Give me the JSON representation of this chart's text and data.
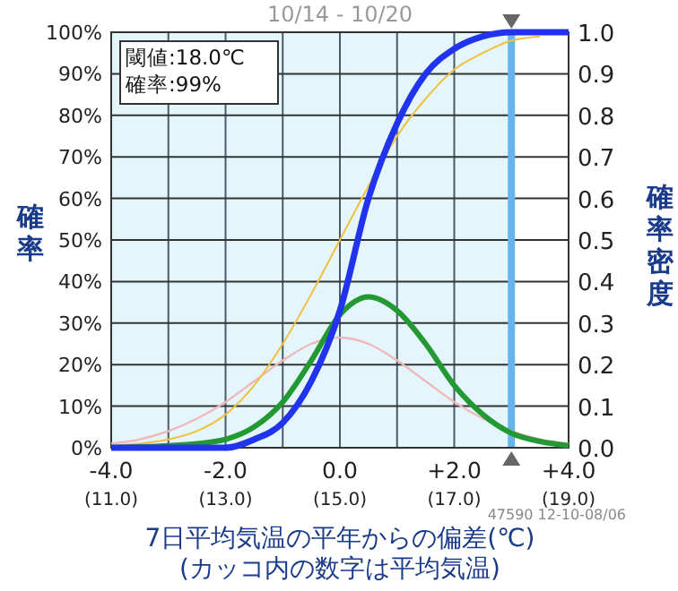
{
  "chart_data": {
    "type": "line",
    "title": "10/14 - 10/20",
    "xlabel": "7日平均気温の平年からの偏差(℃)\n(カッコ内の数字は平均気温)",
    "ylabel": "確率",
    "y2label": "確率密度",
    "x": [
      -4,
      -3.5,
      -3,
      -2.5,
      -2,
      -1.5,
      -1,
      -0.5,
      0,
      0.5,
      1,
      1.5,
      2,
      2.5,
      3,
      3.5,
      4
    ],
    "series": [
      {
        "color": "#f0b8b8",
        "axis": "y2",
        "values": [
          0.01,
          0.02,
          0.04,
          0.07,
          0.11,
          0.16,
          0.21,
          0.25,
          0.265,
          0.25,
          0.21,
          0.16,
          0.11,
          0.07,
          0.04,
          0.02,
          0.01
        ]
      },
      {
        "color": "#f0c040",
        "values": [
          0.5,
          1,
          2,
          4,
          8,
          15,
          25,
          37,
          50,
          63,
          75,
          84,
          91,
          95,
          98,
          99,
          null
        ]
      },
      {
        "color": "#229933",
        "axis": "y2",
        "values": [
          0,
          0.002,
          0.005,
          0.01,
          0.02,
          0.05,
          0.11,
          0.21,
          0.32,
          0.363,
          0.33,
          0.25,
          0.15,
          0.08,
          0.035,
          0.015,
          0.005
        ]
      },
      {
        "color": "#2233ee",
        "values": [
          0,
          0,
          0,
          0,
          0,
          2,
          6,
          16,
          33,
          60,
          78,
          90,
          96,
          99,
          100,
          100,
          100
        ]
      }
    ],
    "xlim": [
      -4,
      4
    ],
    "xticks": [
      {
        "value": -4,
        "label": "-4.0"
      },
      {
        "value": -3,
        "label": null
      },
      {
        "value": -2,
        "label": "-2.0"
      },
      {
        "value": -1,
        "label": null
      },
      {
        "value": 0,
        "label": "0.0"
      },
      {
        "value": 1,
        "label": null
      },
      {
        "value": 2,
        "label": "+2.0"
      },
      {
        "value": 3,
        "label": null
      },
      {
        "value": 4,
        "label": "+4.0"
      }
    ],
    "x2lim": [
      11,
      19
    ],
    "x2ticks": [
      {
        "value": 11,
        "label": "(11.0)"
      },
      {
        "value": 13,
        "label": "(13.0)"
      },
      {
        "value": 15,
        "label": "(15.0)"
      },
      {
        "value": 17,
        "label": "(17.0)"
      },
      {
        "value": 19,
        "label": "(19.0)"
      }
    ],
    "ylim": [
      0,
      100
    ],
    "yticks": [
      {
        "value": 0,
        "label": "0%"
      },
      {
        "value": 10,
        "label": "10%"
      },
      {
        "value": 20,
        "label": "20%"
      },
      {
        "value": 30,
        "label": "30%"
      },
      {
        "value": 40,
        "label": "40%"
      },
      {
        "value": 50,
        "label": "50%"
      },
      {
        "value": 60,
        "label": "60%"
      },
      {
        "value": 70,
        "label": "70%"
      },
      {
        "value": 80,
        "label": "80%"
      },
      {
        "value": 90,
        "label": "90%"
      },
      {
        "value": 100,
        "label": "100%"
      }
    ],
    "y2lim": [
      0,
      1
    ],
    "y2ticks": [
      {
        "value": 0,
        "label": "0.0"
      },
      {
        "value": 0.1,
        "label": "0.1"
      },
      {
        "value": 0.2,
        "label": "0.2"
      },
      {
        "value": 0.3,
        "label": "0.3"
      },
      {
        "value": 0.4,
        "label": "0.4"
      },
      {
        "value": 0.5,
        "label": "0.5"
      },
      {
        "value": 0.6,
        "label": "0.6"
      },
      {
        "value": 0.7,
        "label": "0.7"
      },
      {
        "value": 0.8,
        "label": "0.8"
      },
      {
        "value": 0.9,
        "label": "0.9"
      },
      {
        "value": 1,
        "label": "1.0"
      }
    ],
    "bands": [
      {
        "axis": "x",
        "from": -4,
        "to": 3,
        "color": "#e4f6fc"
      }
    ],
    "ref_lines": [
      {
        "axis": "x",
        "value": 3,
        "color": "#66b4ec"
      }
    ],
    "annotations": [
      "閾値:18.0℃\n確率:99%",
      "47590 12-10-08/06"
    ],
    "grid": true,
    "marker": "none",
    "line_style": "solid"
  }
}
